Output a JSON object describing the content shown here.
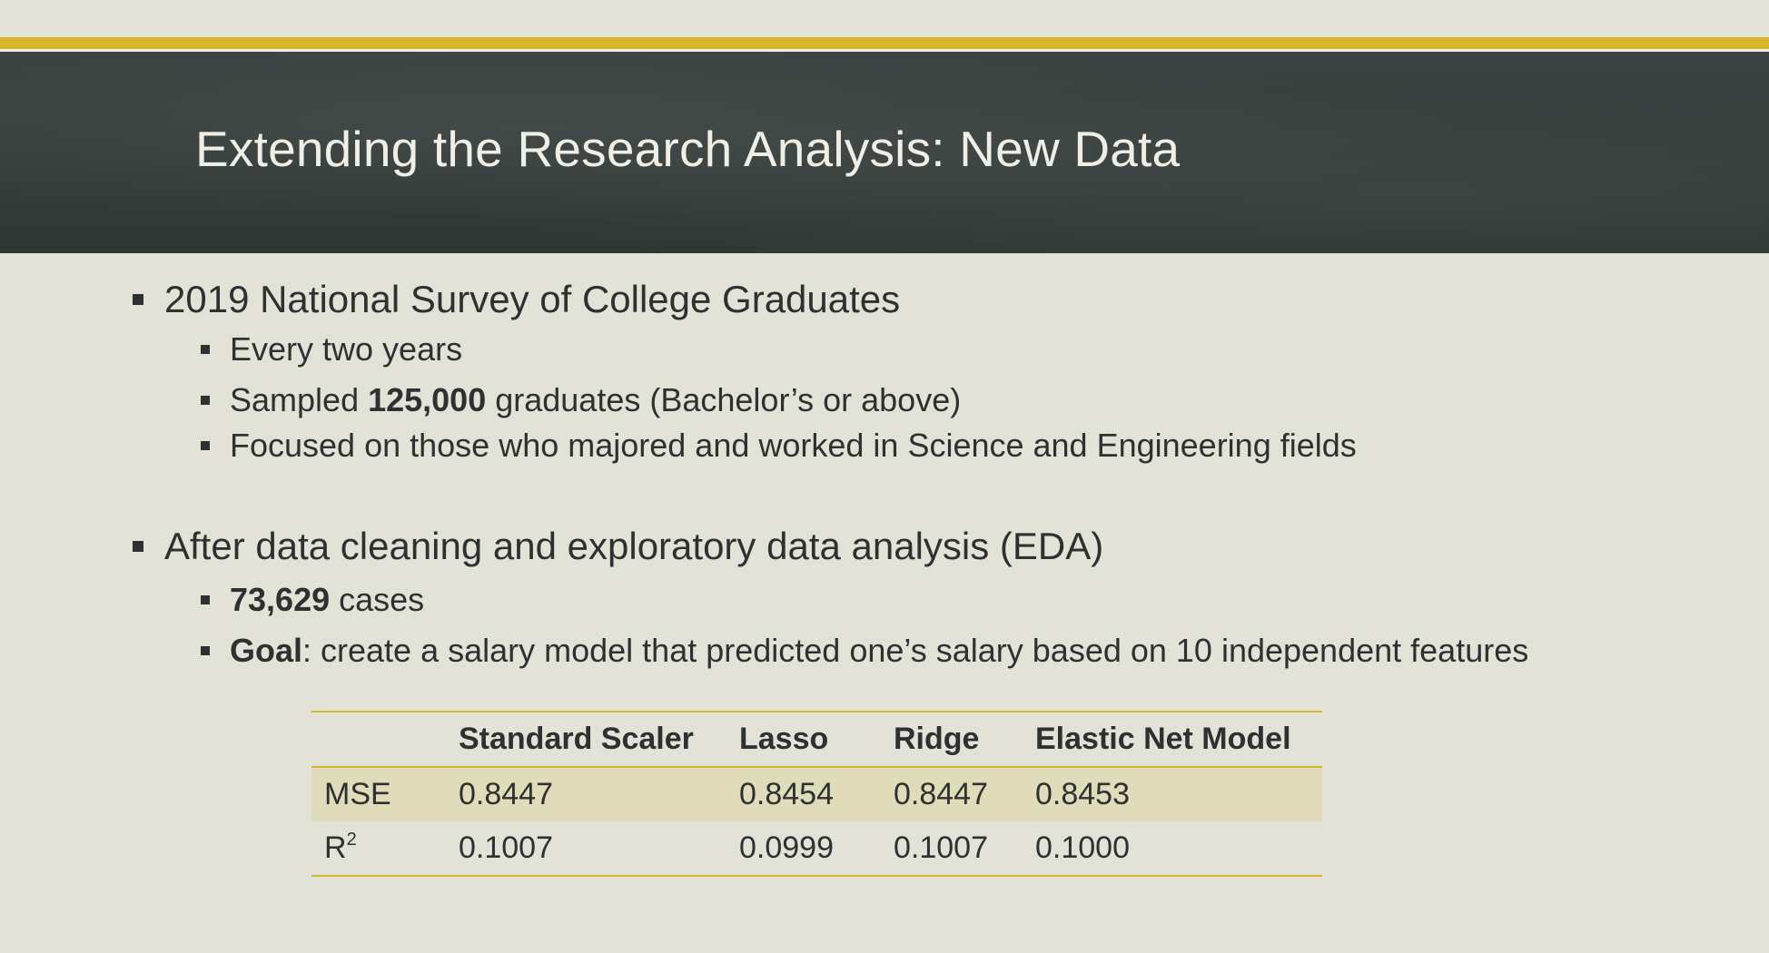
{
  "slide": {
    "title": "Extending the Research Analysis: New Data",
    "accent_color": "#d8b62e",
    "banner_color": "#343c3a",
    "background_color": "#e3e2d6"
  },
  "bullets": {
    "survey": {
      "text": "2019 National Survey of College Graduates",
      "sub": {
        "frequency": "Every two years",
        "sampled_prefix": "Sampled ",
        "sampled_count": "125,000",
        "sampled_suffix": " graduates (Bachelor’s or above)",
        "focus": "Focused on those who majored and worked in Science and Engineering fields"
      }
    },
    "cleaning": {
      "text": "After data cleaning and exploratory data analysis (EDA)",
      "sub": {
        "cases_count": "73,629",
        "cases_suffix": " cases",
        "goal_label": "Goal",
        "goal_text": ": create a salary model that predicted one’s salary based on 10 independent features"
      }
    }
  },
  "table": {
    "headers": [
      "",
      "Standard Scaler",
      "Lasso",
      "Ridge",
      "Elastic Net Model"
    ],
    "rows": [
      {
        "metric": "MSE",
        "values": [
          "0.8447",
          "0.8454",
          "0.8447",
          "0.8453"
        ]
      },
      {
        "metric": "R",
        "metric_superscript": "2",
        "values": [
          "0.1007",
          "0.0999",
          "0.1007",
          "0.1000"
        ]
      }
    ]
  }
}
